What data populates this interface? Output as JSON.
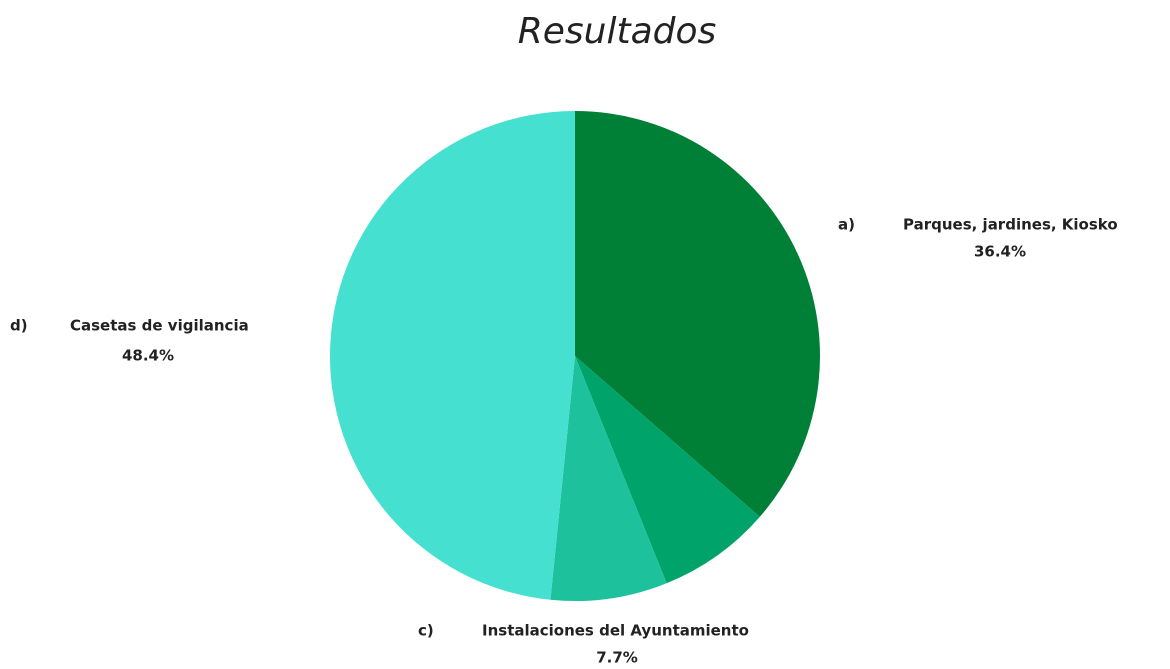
{
  "chart_data": {
    "type": "pie",
    "title": "Resultados",
    "letters": [
      "a)",
      null,
      "c)",
      "d)"
    ],
    "categories": [
      "Parques, jardines, Kiosko",
      null,
      "Instalaciones del Ayuntamiento",
      "Casetas de vigilancia"
    ],
    "values": [
      36.4,
      7.5,
      7.7,
      48.4
    ],
    "value_labels": [
      "36.4%",
      null,
      "7.7%",
      "48.4%"
    ],
    "colors": [
      "#008037",
      "#00a36a",
      "#1dc29c",
      "#45e0cf"
    ]
  }
}
